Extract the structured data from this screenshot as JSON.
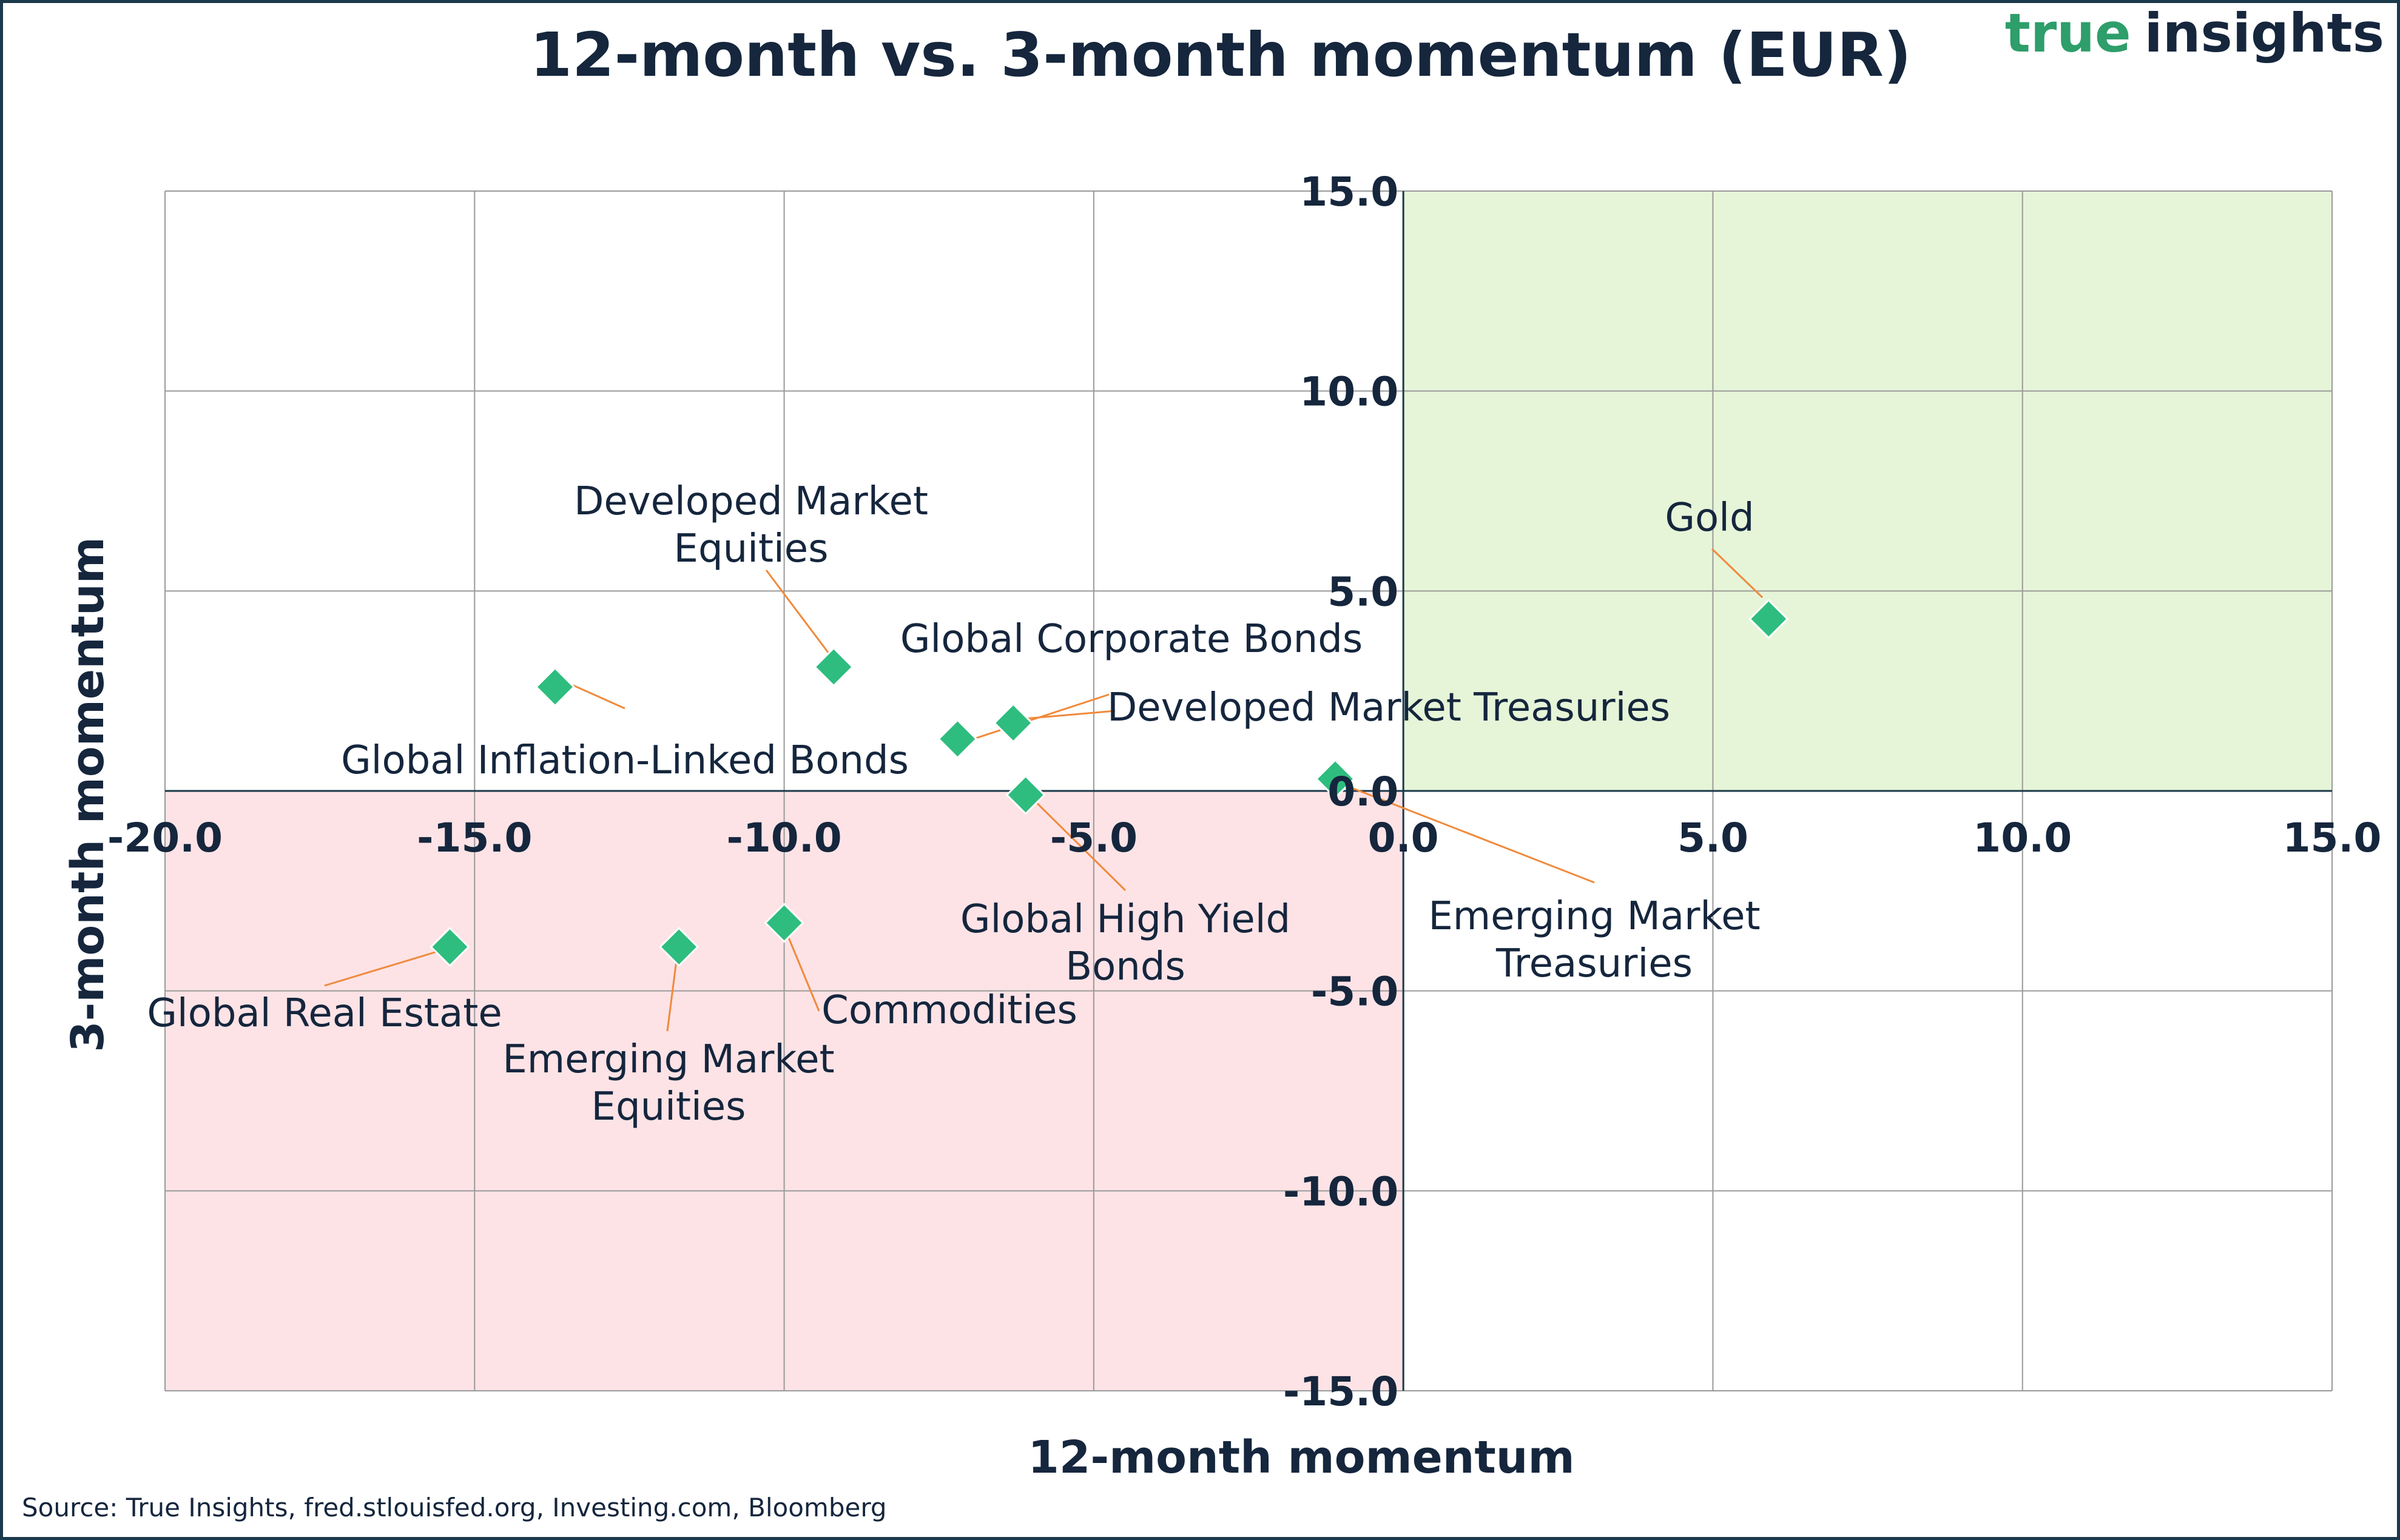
{
  "header": {
    "title": "12-month vs. 3-month momentum (EUR)",
    "logo_part1": "true",
    "logo_part2": "insights"
  },
  "footer": {
    "source": "Source: True Insights, fred.stlouisfed.org, Investing.com, Bloomberg"
  },
  "colors": {
    "marker": "#2ebd7f",
    "leader_line": "#f08a3c",
    "positive_quadrant": "#e6f5d8",
    "negative_quadrant": "#fde3e6",
    "text": "#15263d",
    "logo_green": "#2e9e6b",
    "logo_dark": "#15263d"
  },
  "chart_data": {
    "type": "scatter",
    "title": "12-month vs. 3-month momentum (EUR)",
    "xlabel": "12-month momentum",
    "ylabel": "3-month momentum",
    "xlim": [
      -20,
      15
    ],
    "ylim": [
      -15,
      15
    ],
    "x_ticks": [
      -20,
      -15,
      -10,
      -5,
      0,
      5,
      10,
      15
    ],
    "y_ticks": [
      15,
      10,
      5,
      0,
      -5,
      -10,
      -15
    ],
    "x_tick_labels": [
      "-20.0",
      "-15.0",
      "-10.0",
      "-5.0",
      "0.0",
      "5.0",
      "10.0",
      "15.0"
    ],
    "y_tick_labels": [
      "15.0",
      "10.0",
      "5.0",
      "0.0",
      "-5.0",
      "-10.0",
      "-15.0"
    ],
    "grid": true,
    "shaded_regions": [
      {
        "quadrant": "x>0, y>0",
        "color": "#e6f5d8"
      },
      {
        "quadrant": "x<0, y<0",
        "color": "#fde3e6"
      }
    ],
    "points": [
      {
        "label": [
          "Gold"
        ],
        "x": 5.9,
        "y": 4.3
      },
      {
        "label": [
          "Developed Market",
          "Equities"
        ],
        "x": -9.2,
        "y": 3.1
      },
      {
        "label": [
          "Global Inflation-Linked Bonds"
        ],
        "x": -13.7,
        "y": 2.6
      },
      {
        "label": [
          "Global Corporate Bonds"
        ],
        "x": -6.3,
        "y": 1.7
      },
      {
        "label": [
          "Developed Market Treasuries"
        ],
        "x": -7.2,
        "y": 1.3
      },
      {
        "label": [
          "Emerging Market",
          "Treasuries"
        ],
        "x": -1.1,
        "y": 0.3
      },
      {
        "label": [
          "Global High Yield",
          "Bonds"
        ],
        "x": -6.1,
        "y": -0.1
      },
      {
        "label": [
          "Commodities"
        ],
        "x": -10.0,
        "y": -3.3
      },
      {
        "label": [
          "Emerging Market",
          "Equities"
        ],
        "x": -11.7,
        "y": -3.9
      },
      {
        "label": [
          "Global Real Estate"
        ],
        "x": -15.4,
        "y": -3.9
      }
    ]
  }
}
